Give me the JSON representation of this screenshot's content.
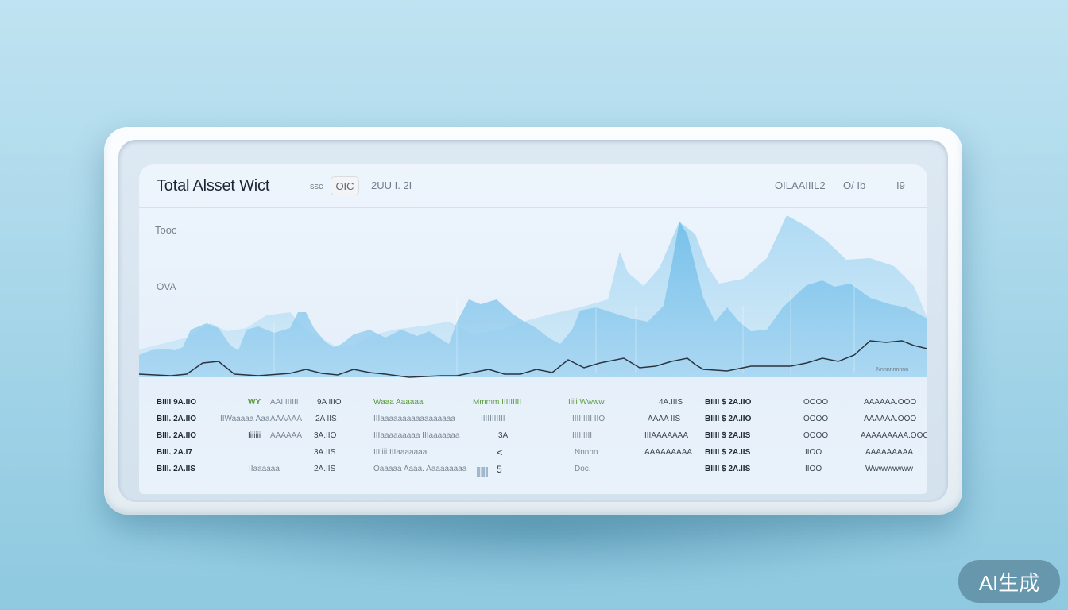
{
  "header": {
    "title": "Total Alsset Wict",
    "tag": "ssc",
    "chip": "OIC",
    "date": "2UU I. 2I",
    "right_text": "OILAAIIIL2",
    "right_mid": "O/ Ib",
    "right_num": "I9"
  },
  "yaxis": {
    "label_top": "Tooc",
    "label_mid": "OVA"
  },
  "chart_footer": "Nnnnnnnnnn",
  "colors": {
    "area_fill": "#7ec3ea",
    "area_fill_light": "#b8def3",
    "line": "#2b3440"
  },
  "table": {
    "rows": [
      [
        "BIIII 9A.IIO",
        "WY",
        "AAIIIIIIII",
        "9A IIIO",
        "Waaa Aaaaaa",
        "Mmmm IIIIIIIII",
        "Iiiii Wwww",
        "4A.IIIS",
        "BIIII $ 2A.IIO",
        "OOOO",
        "AAAAAA.OOO"
      ],
      [
        "BIII. 2A.IIO",
        "IIWaaaaa Aaa",
        "AAAAAA",
        "2A IIS",
        "IIIaaaaaaaaaaaaaaaaa",
        "IIIIIIIIIII",
        "IIIIIIIII IIO",
        "AAAA IIS",
        "BIIII $ 2A.IIO",
        "OOOO",
        "AAAAAA.OOO"
      ],
      [
        "BIII. 2A.IIO",
        "Iiiiiii",
        "AAAAAA",
        "3A.IIO",
        "IIIaaaaaaaaa IIIaaaaaaa",
        "3A",
        "IIIIIIIII",
        "IIIAAAAAAA",
        "BIIII $ 2A.IIS",
        "OOOO",
        "AAAAAAAAA.OOO"
      ],
      [
        "BIII. 2A.I7",
        "",
        "",
        "3A.IIS",
        "IIIiiii IIIaaaaaaa",
        "<",
        "Nnnnn",
        "AAAAAAAAA",
        "BIIII $ 2A.IIS",
        "IIOO",
        "AAAAAAAAA"
      ],
      [
        "BIII. 2A.IIS",
        "IIaaaaaa",
        "",
        "2A.IIS",
        "Oaaaaa Aaaa. Aaaaaaaaa",
        "5",
        "Doc.",
        "",
        "BIIII $ 2A.IIS",
        "IIOO",
        "Wwwwwwww"
      ]
    ]
  }
}
